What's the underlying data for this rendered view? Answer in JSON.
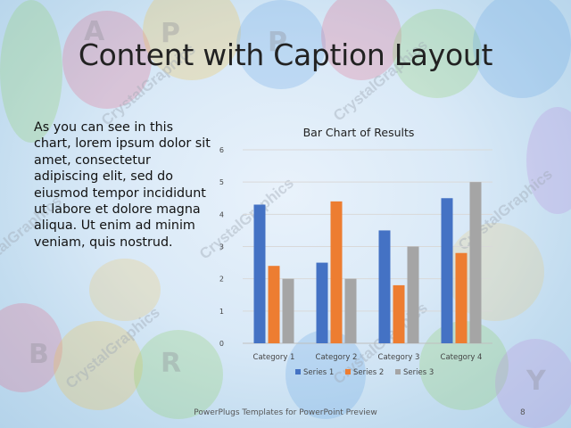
{
  "slide": {
    "title": "Content with Caption Layout",
    "body": "As you can see in this chart, lorem ipsum dolor sit amet, consectetur adipiscing elit, sed do eiusmod tempor incididunt ut labore et dolore magna aliqua. Ut enim ad minim veniam, quis nostrud.",
    "footer": "PowerPlugs Templates for PowerPoint Preview",
    "page_number": "8",
    "watermark": "CrystalGraphics"
  },
  "chart_data": {
    "type": "bar",
    "title": "Bar Chart of Results",
    "categories": [
      "Category 1",
      "Category 2",
      "Category 3",
      "Category 4"
    ],
    "series": [
      {
        "name": "Series 1",
        "values": [
          4.3,
          2.5,
          3.5,
          4.5
        ],
        "color": "#4472c4"
      },
      {
        "name": "Series 2",
        "values": [
          2.4,
          4.4,
          1.8,
          2.8
        ],
        "color": "#ed7d31"
      },
      {
        "name": "Series 3",
        "values": [
          2,
          2,
          3,
          5
        ],
        "color": "#a5a5a5"
      }
    ],
    "ylim": [
      0,
      6
    ],
    "yticks": [
      "0",
      "1",
      "2",
      "3",
      "4",
      "5",
      "6"
    ],
    "grid": true,
    "legend": "bottom"
  }
}
